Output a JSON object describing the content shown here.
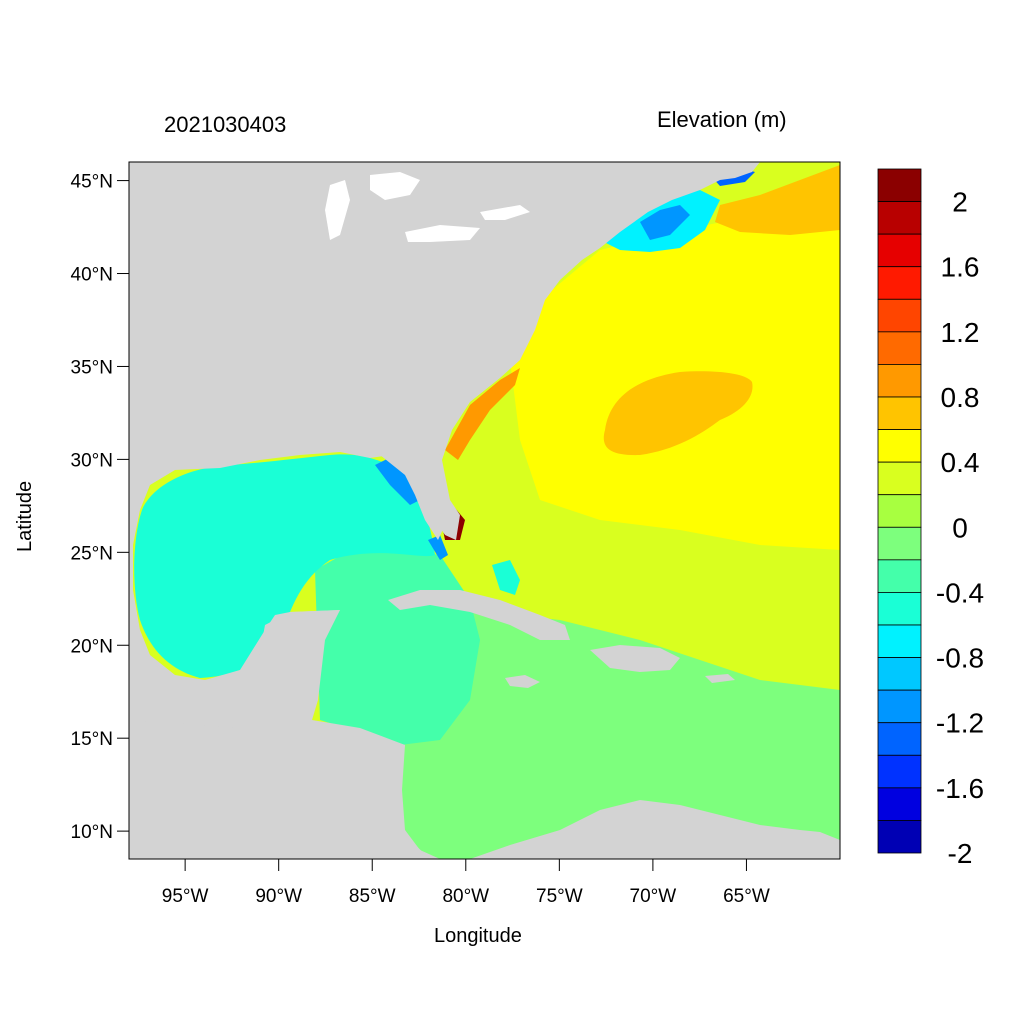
{
  "title_left": "2021030403",
  "title_right": "Elevation (m)",
  "xlabel": "Longitude",
  "ylabel": "Latitude",
  "map": {
    "lon_range": [
      -98,
      -60
    ],
    "lat_range": [
      8.5,
      46
    ],
    "lon_ticks": [
      {
        "value": -95,
        "label": "95°W"
      },
      {
        "value": -90,
        "label": "90°W"
      },
      {
        "value": -85,
        "label": "85°W"
      },
      {
        "value": -80,
        "label": "80°W"
      },
      {
        "value": -75,
        "label": "75°W"
      },
      {
        "value": -70,
        "label": "70°W"
      },
      {
        "value": -65,
        "label": "65°W"
      }
    ],
    "lat_ticks": [
      {
        "value": 45,
        "label": "45°N"
      },
      {
        "value": 40,
        "label": "40°N"
      },
      {
        "value": 35,
        "label": "35°N"
      },
      {
        "value": 30,
        "label": "30°N"
      },
      {
        "value": 25,
        "label": "25°N"
      },
      {
        "value": 20,
        "label": "20°N"
      },
      {
        "value": 15,
        "label": "15°N"
      },
      {
        "value": 10,
        "label": "10°N"
      }
    ],
    "land_color": "#d3d3d3"
  },
  "colorbar": {
    "colors": [
      "#8b0000",
      "#b80000",
      "#e60000",
      "#ff1a00",
      "#ff4500",
      "#ff6a00",
      "#ff9900",
      "#ffc400",
      "#ffff00",
      "#d9ff1f",
      "#a8ff40",
      "#7dff7d",
      "#44ffaa",
      "#1affd6",
      "#00f2ff",
      "#00c8ff",
      "#0096ff",
      "#0064ff",
      "#0032ff",
      "#0000e0",
      "#0000b4"
    ],
    "labels": [
      "2",
      "1.6",
      "1.2",
      "0.8",
      "0.4",
      "0",
      "-0.4",
      "-0.8",
      "-1.2",
      "-1.6",
      "-2"
    ]
  }
}
